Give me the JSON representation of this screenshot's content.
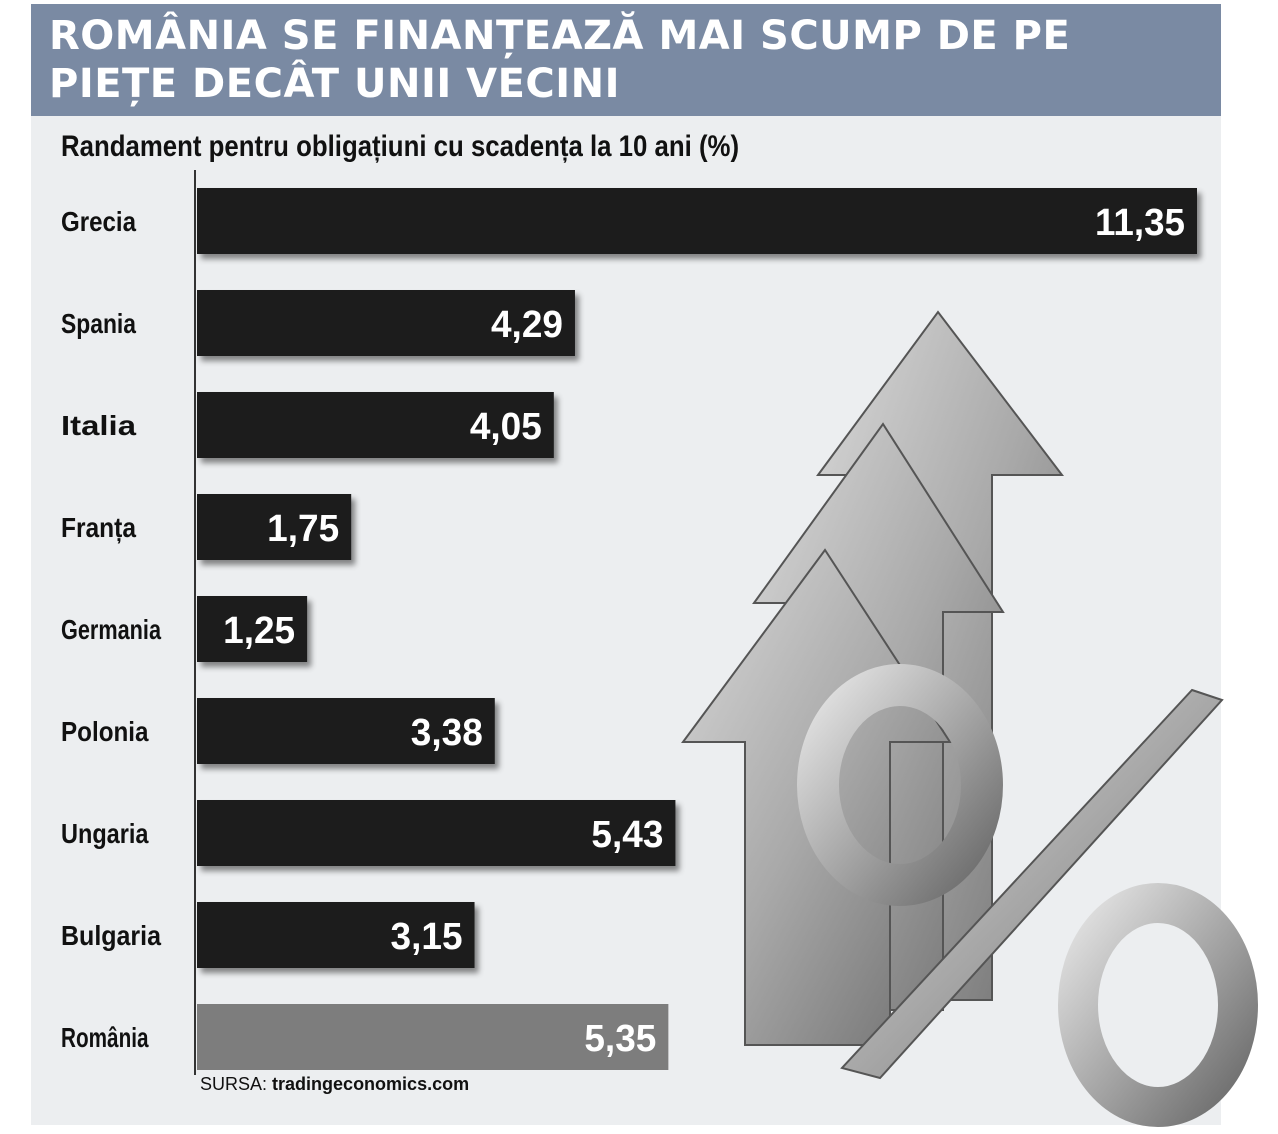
{
  "title": "ROMÂNIA SE FINANȚEAZĂ MAI SCUMP DE PE PIEȚE DECÂT UNII VECINI",
  "source_label": "SURSA:",
  "source_value": "tradingeconomics.com",
  "colors": {
    "bar": "#1c1c1c",
    "highlight": "#7d7d7d",
    "header": "#7a8aa3",
    "panel": "#eceef0"
  },
  "decoration": [
    "up-arrows-illustration",
    "percent-sign-illustration"
  ],
  "chart_data": {
    "type": "bar",
    "orientation": "horizontal",
    "title": "Randament pentru obligațiuni cu scadența la 10 ani (%)",
    "categories": [
      "Grecia",
      "Spania",
      "Italia",
      "Franța",
      "Germania",
      "Polonia",
      "Ungaria",
      "Bulgaria",
      "România"
    ],
    "values": [
      11.35,
      4.29,
      4.05,
      1.75,
      1.25,
      3.38,
      5.43,
      3.15,
      5.35
    ],
    "value_labels": [
      "11,35",
      "4,29",
      "4,05",
      "1,75",
      "1,25",
      "3,38",
      "5,43",
      "3,15",
      "5,35"
    ],
    "highlight": "România",
    "xlim": [
      0,
      11.35
    ],
    "grid": false,
    "legend": "none"
  }
}
